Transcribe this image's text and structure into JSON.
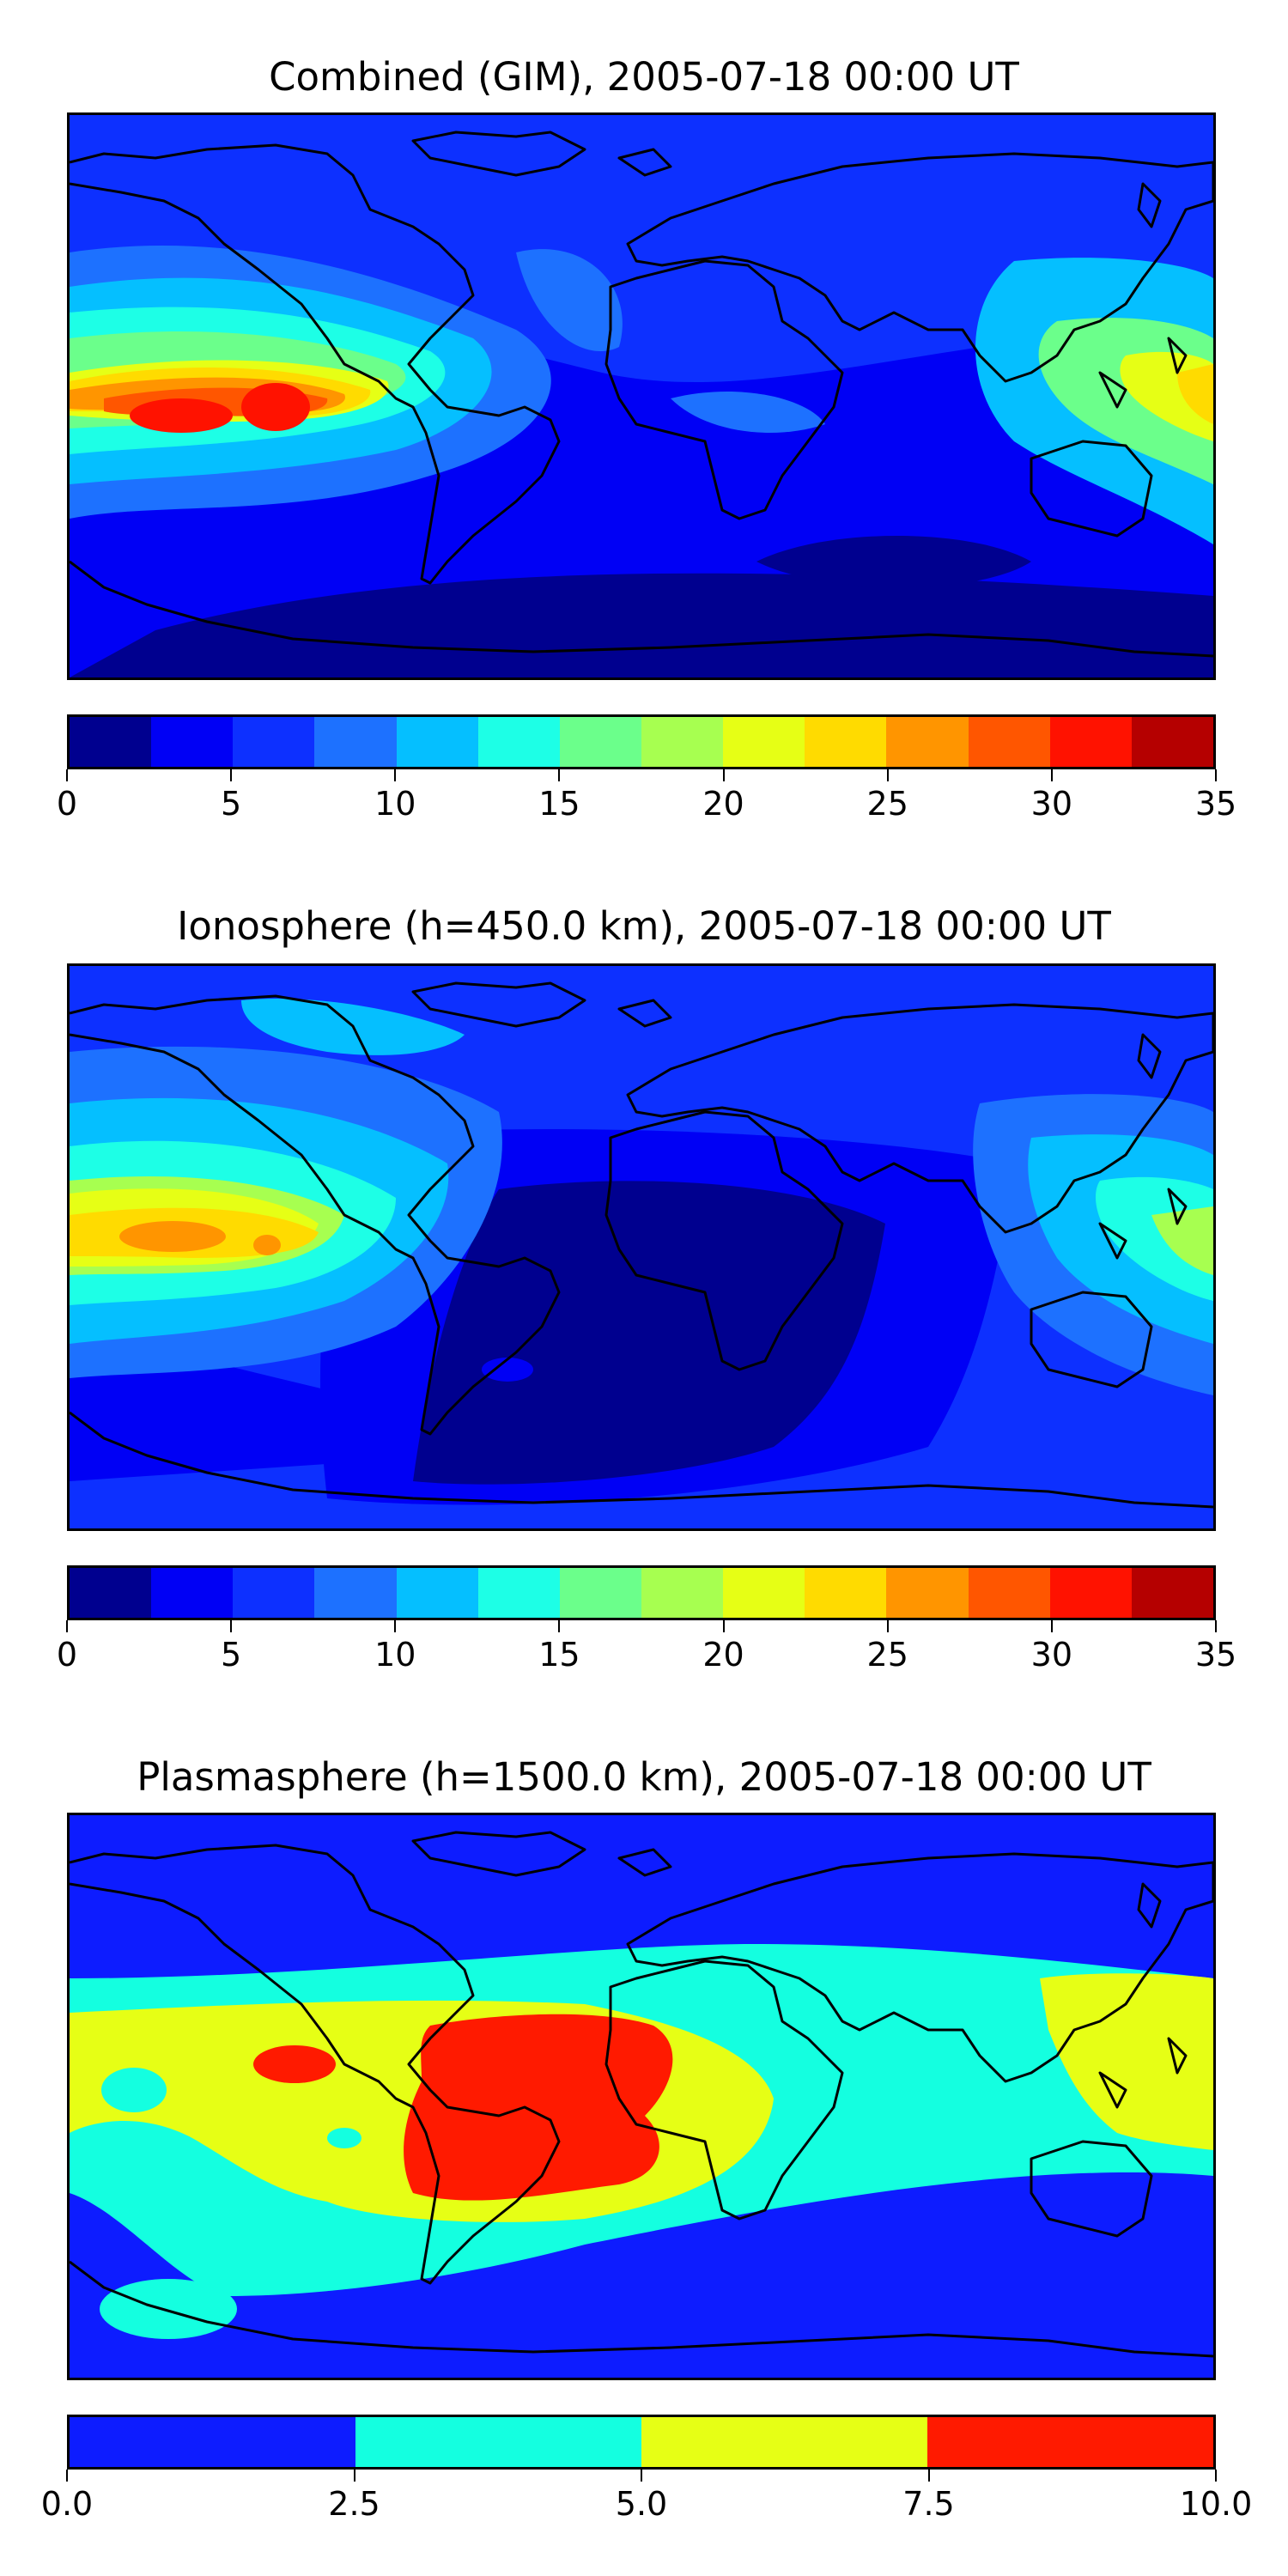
{
  "panels": [
    {
      "title": "Combined (GIM), 2005-07-18 00:00 UT",
      "colorbar": {
        "levels": [
          0,
          2.5,
          5,
          7.5,
          10,
          12.5,
          15,
          17.5,
          20,
          22.5,
          25,
          27.5,
          30,
          32.5,
          35
        ],
        "colors": [
          "#00008f",
          "#0000f5",
          "#0d30ff",
          "#1d71ff",
          "#05bfff",
          "#1dffe6",
          "#6bff8b",
          "#a7ff50",
          "#e6ff15",
          "#ffdb00",
          "#ff9500",
          "#ff5600",
          "#ff1200",
          "#b50000"
        ],
        "tick_labels": [
          "0",
          "5",
          "10",
          "15",
          "20",
          "25",
          "30",
          "35"
        ],
        "tick_values": [
          0,
          5,
          10,
          15,
          20,
          25,
          30,
          35
        ]
      }
    },
    {
      "title": "Ionosphere  (h=450.0 km), 2005-07-18 00:00 UT",
      "colorbar": {
        "levels": [
          0,
          2.5,
          5,
          7.5,
          10,
          12.5,
          15,
          17.5,
          20,
          22.5,
          25,
          27.5,
          30,
          32.5,
          35
        ],
        "colors": [
          "#00008f",
          "#0000f5",
          "#0d30ff",
          "#1d71ff",
          "#05bfff",
          "#1dffe6",
          "#6bff8b",
          "#a7ff50",
          "#e6ff15",
          "#ffdb00",
          "#ff9500",
          "#ff5600",
          "#ff1200",
          "#b50000"
        ],
        "tick_labels": [
          "0",
          "5",
          "10",
          "15",
          "20",
          "25",
          "30",
          "35"
        ],
        "tick_values": [
          0,
          5,
          10,
          15,
          20,
          25,
          30,
          35
        ]
      }
    },
    {
      "title": "Plasmasphere (h=1500.0 km), 2005-07-18 00:00 UT",
      "colorbar": {
        "levels": [
          0,
          2.5,
          5,
          7.5,
          10
        ],
        "colors": [
          "#0d1cff",
          "#14ffe0",
          "#e6ff15",
          "#ff1a00"
        ],
        "tick_labels": [
          "0.0",
          "2.5",
          "5.0",
          "7.5",
          "10.0"
        ],
        "tick_values": [
          0,
          2.5,
          5,
          7.5,
          10
        ]
      }
    }
  ]
}
